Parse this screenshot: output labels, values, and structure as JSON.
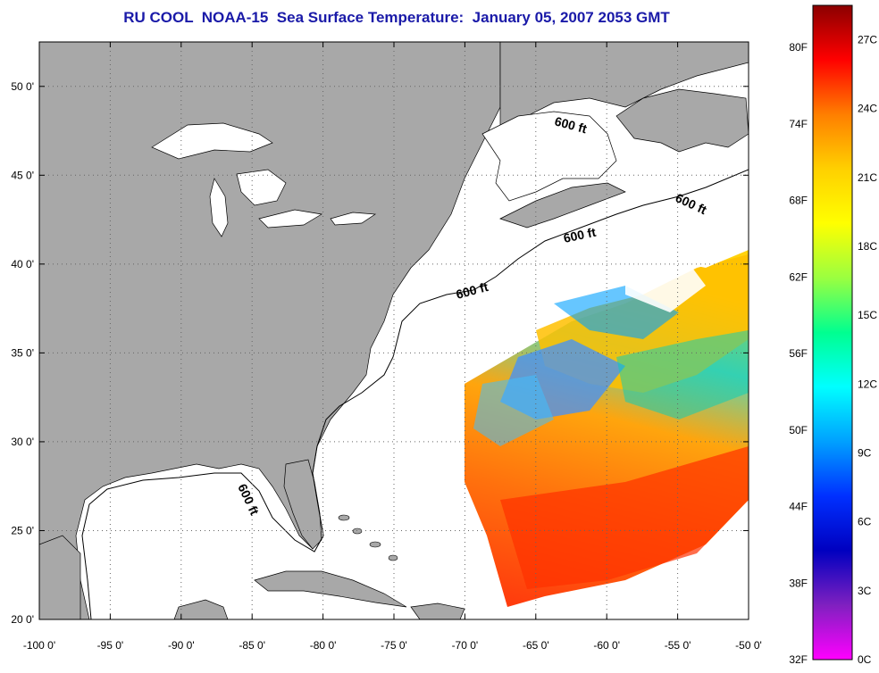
{
  "title": "RU COOL  NOAA-15  Sea Surface Temperature:  January 05, 2007 2053 GMT",
  "map": {
    "lon_range": [
      -100,
      -50
    ],
    "lat_range": [
      20,
      52.5
    ],
    "lon_ticks": [
      "-100 0'",
      "-95 0'",
      "-90 0'",
      "-85 0'",
      "-80 0'",
      "-75 0'",
      "-70 0'",
      "-65 0'",
      "-60 0'",
      "-55 0'",
      "-50 0'"
    ],
    "lat_ticks": [
      "20 0'",
      "25 0'",
      "30 0'",
      "35 0'",
      "40 0'",
      "45 0'",
      "50 0'"
    ],
    "contour_label": "600 ft",
    "colors": {
      "land": "#a8a8a8",
      "ocean_nodata": "#ffffff",
      "grid": "#666666"
    }
  },
  "colorbar": {
    "fahrenheit_labels": [
      "80F",
      "74F",
      "68F",
      "62F",
      "56F",
      "50F",
      "44F",
      "38F",
      "32F"
    ],
    "celsius_labels": [
      "27C",
      "24C",
      "21C",
      "18C",
      "15C",
      "12C",
      "9C",
      "6C",
      "3C",
      "0C"
    ],
    "range_c": [
      0,
      28.5
    ],
    "stops": [
      "#8b0000",
      "#ff0000",
      "#ff7f00",
      "#ffd000",
      "#ffff00",
      "#9aff40",
      "#00ff90",
      "#00ffff",
      "#00a0ff",
      "#0030ff",
      "#0000c0",
      "#8020c0",
      "#ff00ff"
    ]
  }
}
